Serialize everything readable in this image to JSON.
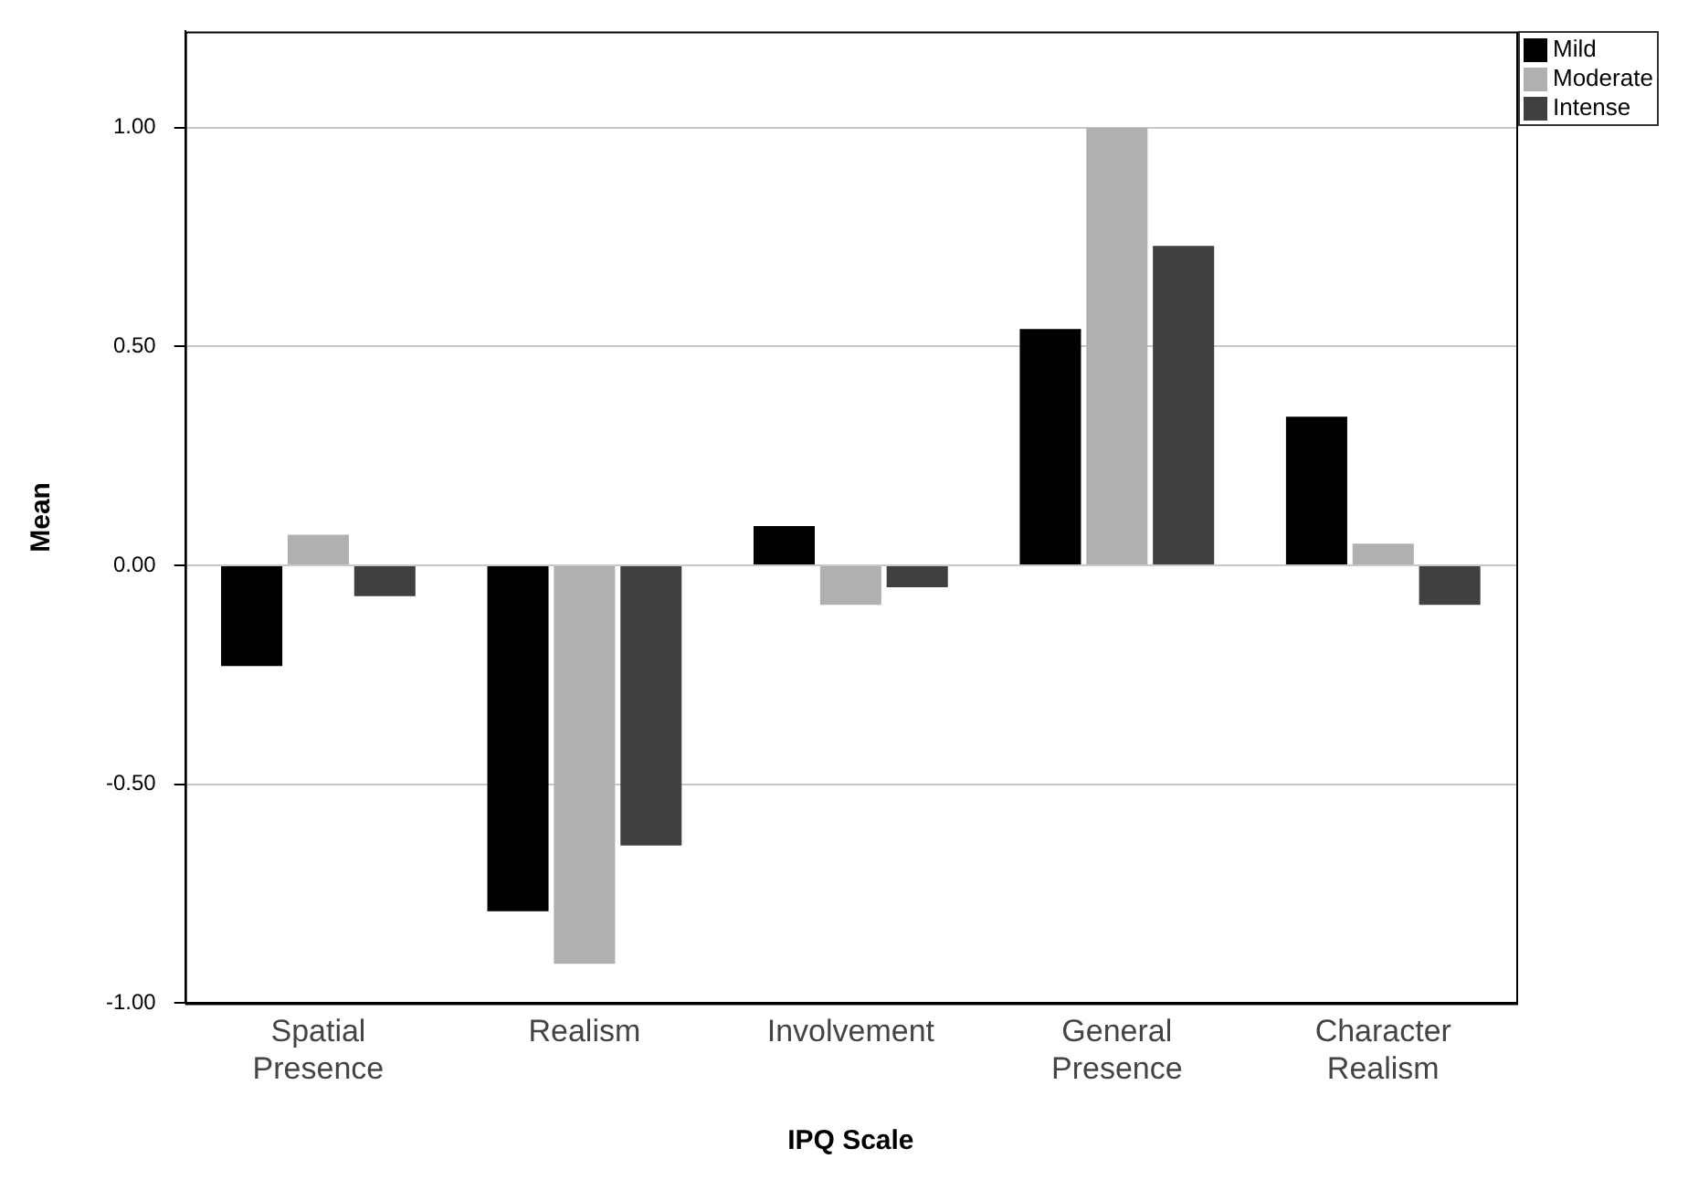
{
  "chart_data": {
    "type": "bar",
    "xlabel": "IPQ Scale",
    "ylabel": "Mean",
    "categories": [
      "Spatial Presence",
      "Realism",
      "Involvement",
      "General Presence",
      "Character Realism"
    ],
    "series": [
      {
        "name": "Mild",
        "color": "#000000",
        "values": [
          -0.23,
          -0.79,
          0.09,
          0.54,
          0.34
        ]
      },
      {
        "name": "Moderate",
        "color": "#b0b0b0",
        "values": [
          0.07,
          -0.91,
          -0.09,
          1.0,
          0.05
        ]
      },
      {
        "name": "Intense",
        "color": "#404040",
        "values": [
          -0.07,
          -0.64,
          -0.05,
          0.73,
          -0.09
        ]
      }
    ],
    "ylim": [
      -1,
      1.22
    ],
    "yticks": [
      {
        "value": -1,
        "label": "-1.00"
      },
      {
        "value": -0.5,
        "label": "-0.50"
      },
      {
        "value": 0,
        "label": "0.00"
      },
      {
        "value": 0.5,
        "label": "0.50"
      },
      {
        "value": 1,
        "label": "1.00"
      }
    ],
    "grid": "y",
    "legend": "top right"
  }
}
